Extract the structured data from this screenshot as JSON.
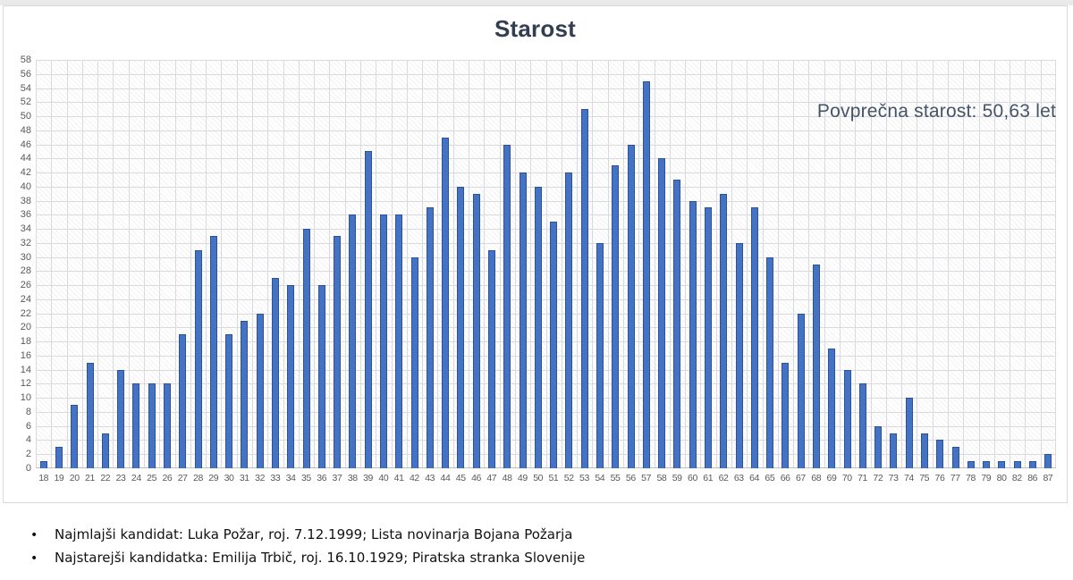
{
  "chart_data": {
    "type": "bar",
    "title": "Starost",
    "annotation": "Povprečna starost: 50,63 let",
    "categories": [
      "18",
      "19",
      "20",
      "21",
      "22",
      "23",
      "24",
      "25",
      "26",
      "27",
      "28",
      "29",
      "30",
      "31",
      "32",
      "33",
      "34",
      "35",
      "36",
      "37",
      "38",
      "39",
      "40",
      "41",
      "42",
      "43",
      "44",
      "45",
      "46",
      "47",
      "48",
      "49",
      "50",
      "51",
      "52",
      "53",
      "54",
      "55",
      "56",
      "57",
      "58",
      "59",
      "60",
      "61",
      "62",
      "63",
      "64",
      "65",
      "66",
      "67",
      "68",
      "69",
      "70",
      "71",
      "72",
      "73",
      "74",
      "75",
      "76",
      "77",
      "78",
      "79",
      "80",
      "82",
      "86",
      "87"
    ],
    "values": [
      1,
      3,
      9,
      15,
      5,
      14,
      12,
      12,
      12,
      19,
      31,
      33,
      19,
      21,
      22,
      27,
      26,
      34,
      26,
      33,
      36,
      45,
      36,
      36,
      30,
      37,
      47,
      40,
      39,
      31,
      46,
      42,
      40,
      35,
      42,
      51,
      32,
      43,
      46,
      55,
      44,
      41,
      38,
      37,
      39,
      32,
      37,
      30,
      15,
      22,
      29,
      17,
      14,
      12,
      6,
      5,
      10,
      5,
      4,
      3,
      1,
      1,
      1,
      1,
      1,
      2
    ],
    "ylim": [
      0,
      58
    ],
    "ytick_step": 2,
    "grid": "on",
    "legend": "none",
    "xlabel": "",
    "ylabel": "",
    "colors": {
      "bar_fill": "#4472C4",
      "bar_border": "#2E5395",
      "gridline": "#dadade",
      "axis_line": "#bfbfbf",
      "tick_label": "#595959",
      "title": "#333F50",
      "annotation": "#44546A"
    }
  },
  "notes": {
    "bullet_char": "•",
    "items": [
      "Najmlajši kandidat: Luka Požar, roj. 7.12.1999; Lista novinarja Bojana Požarja",
      "Najstarejši kandidatka: Emilija Trbič, roj. 16.10.1929; Piratska stranka Slovenije"
    ]
  }
}
